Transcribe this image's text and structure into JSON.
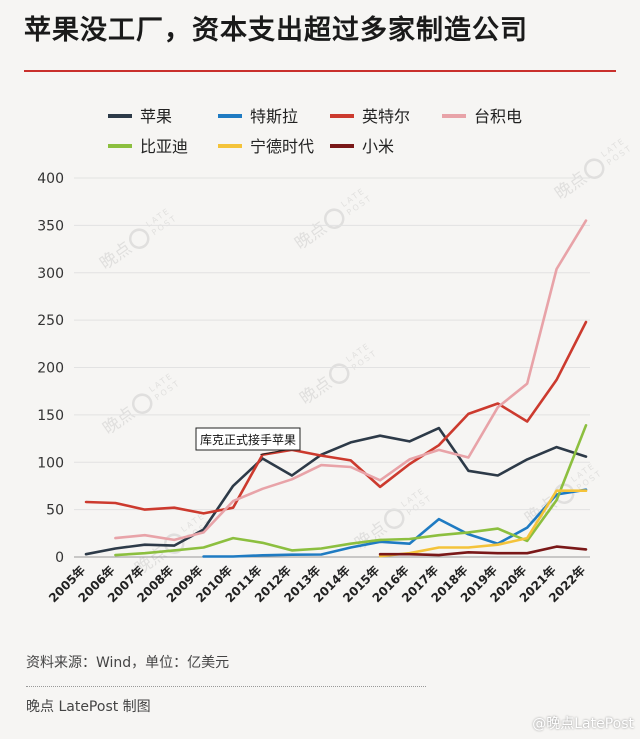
{
  "title": "苹果没工厂，资本支出超过多家制造公司",
  "source_note": "资料来源：Wind，单位：亿美元",
  "credit": "晚点 LatePost 制图",
  "corner_watermark": "@晚点LatePost",
  "watermark": {
    "brand": "晚点",
    "line1": "LATE",
    "line2": "POST"
  },
  "chart_data": {
    "type": "line",
    "ylim": [
      0,
      400
    ],
    "yticks": [
      0,
      50,
      100,
      150,
      200,
      250,
      300,
      350,
      400
    ],
    "categories": [
      "2005年",
      "2006年",
      "2007年",
      "2008年",
      "2009年",
      "2010年",
      "2011年",
      "2012年",
      "2013年",
      "2014年",
      "2015年",
      "2016年",
      "2017年",
      "2018年",
      "2019年",
      "2020年",
      "2021年",
      "2022年"
    ],
    "annotation": {
      "text": "库克正式接手苹果",
      "x_index": 6
    },
    "series": [
      {
        "name": "苹果",
        "color": "#2d3a48",
        "values": [
          3,
          9,
          13,
          12,
          29,
          75,
          104,
          86,
          108,
          121,
          128,
          122,
          136,
          91,
          86,
          103,
          116,
          106
        ]
      },
      {
        "name": "特斯拉",
        "color": "#1f7bc2",
        "values": [
          null,
          null,
          null,
          null,
          0.5,
          0.5,
          1.8,
          2.4,
          2.6,
          10,
          16,
          14,
          40,
          24,
          14,
          31,
          66,
          71
        ]
      },
      {
        "name": "英特尔",
        "color": "#cc3a2e",
        "values": [
          58,
          57,
          50,
          52,
          46,
          52,
          108,
          113,
          107,
          102,
          74,
          98,
          118,
          151,
          162,
          143,
          187,
          248
        ]
      },
      {
        "name": "台积电",
        "color": "#e8a3a8",
        "values": [
          null,
          20,
          23,
          18,
          26,
          59,
          72,
          82,
          97,
          95,
          81,
          103,
          113,
          105,
          158,
          183,
          304,
          355
        ]
      },
      {
        "name": "比亚迪",
        "color": "#8cbf3f",
        "values": [
          null,
          2,
          4,
          7,
          10,
          20,
          15,
          7,
          9,
          14,
          18,
          19,
          23,
          26,
          30,
          17,
          60,
          139
        ]
      },
      {
        "name": "宁德时代",
        "color": "#f4c33a",
        "values": [
          null,
          null,
          null,
          null,
          null,
          null,
          null,
          null,
          null,
          null,
          1,
          4,
          10,
          10,
          13,
          20,
          70,
          70
        ]
      },
      {
        "name": "小米",
        "color": "#7a1818",
        "values": [
          null,
          null,
          null,
          null,
          null,
          null,
          null,
          null,
          null,
          null,
          3,
          3,
          2,
          5,
          4,
          4,
          11,
          8
        ]
      }
    ]
  }
}
